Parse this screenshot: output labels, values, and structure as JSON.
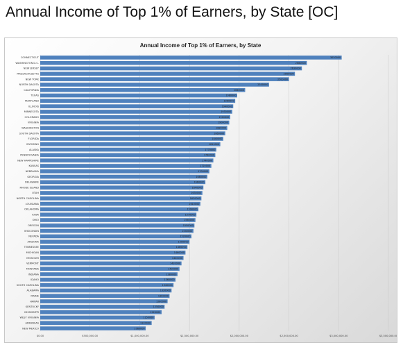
{
  "page": {
    "title": "Annual Income of Top 1% of Earners, by State [OC]"
  },
  "chart_data": {
    "type": "bar",
    "orientation": "horizontal",
    "title": "Annual Income of Top 1% of Earners, by State",
    "xlabel": "",
    "ylabel": "",
    "xlim": [
      0,
      3500000
    ],
    "x_ticks": [
      0,
      500000,
      1000000,
      1500000,
      2000000,
      2500000,
      3000000,
      3500000
    ],
    "x_tick_labels": [
      "$0.00",
      "$500,000.00",
      "$1,000,000.00",
      "$1,500,000.00",
      "$2,000,000.00",
      "$2,500,000.00",
      "$3,000,000.00",
      "$3,500,000.00"
    ],
    "grid": true,
    "bar_color": "#4f81bd",
    "categories": [
      "CONNECTICUT",
      "WASHINGTON D.C.",
      "NEW JERSEY",
      "MASSACHUSETTS",
      "NEW YORK",
      "NORTH DAKOTA",
      "CALIFORNIA",
      "TEXAS",
      "MARYLAND",
      "ILLINOIS",
      "MINNESOTA",
      "COLORADO",
      "VIRGINIA",
      "WASHINGTON",
      "SOUTH DAKOTA",
      "FLORIDA",
      "WYOMING",
      "ALASKA",
      "PENNSYLVANIA",
      "NEW HAMPSHIRE",
      "KANSAS",
      "NEBRASKA",
      "GEORGIA",
      "DELAWARE",
      "RHODE ISLAND",
      "UTAH",
      "NORTH CAROLINA",
      "LOUISIANA",
      "OKLAHOMA",
      "IOWA",
      "OHIO",
      "OREGON",
      "WISCONSIN",
      "NEVADA",
      "ARIZONA",
      "TENNESSEE",
      "MICHIGAN",
      "MISSOURI",
      "VERMONT",
      "MONTANA",
      "INDIANA",
      "IDAHO",
      "SOUTH CAROLINA",
      "ALABAMA",
      "MAINE",
      "HAWAII",
      "KENTUCKY",
      "MISSISSIPPI",
      "WEST VIRGINIA",
      "ARKANSAS",
      "NEW MEXICO"
    ],
    "values": [
      3030000,
      2680000,
      2630000,
      2560000,
      2500000,
      2300000,
      2060000,
      1980000,
      1960000,
      1940000,
      1930000,
      1910000,
      1900000,
      1880000,
      1860000,
      1840000,
      1810000,
      1770000,
      1760000,
      1740000,
      1720000,
      1700000,
      1680000,
      1660000,
      1640000,
      1630000,
      1620000,
      1610000,
      1590000,
      1570000,
      1560000,
      1550000,
      1540000,
      1520000,
      1500000,
      1480000,
      1460000,
      1440000,
      1420000,
      1400000,
      1380000,
      1360000,
      1340000,
      1320000,
      1300000,
      1280000,
      1250000,
      1220000,
      1150000,
      1120000,
      1060000
    ]
  }
}
